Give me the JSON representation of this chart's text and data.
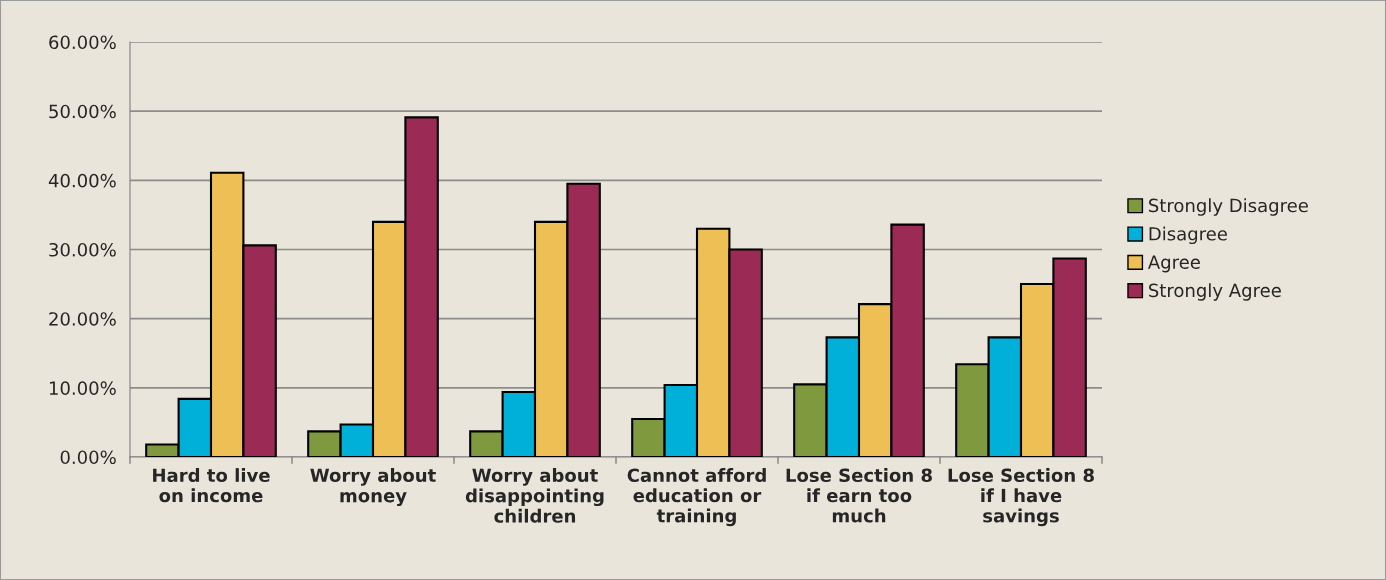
{
  "chart_data": {
    "type": "bar",
    "categories": [
      "Hard to live on income",
      "Worry about money",
      "Worry about disappointing children",
      "Cannot afford education or training",
      "Lose Section 8 if earn too much",
      "Lose Section 8 if I have savings"
    ],
    "series": [
      {
        "name": "Strongly Disagree",
        "color": "#7f9a3e",
        "values": [
          1.8,
          3.7,
          3.7,
          5.5,
          10.5,
          13.4
        ]
      },
      {
        "name": "Disagree",
        "color": "#00b0d8",
        "values": [
          8.4,
          4.7,
          9.4,
          10.4,
          17.3,
          17.3
        ]
      },
      {
        "name": "Agree",
        "color": "#eebf55",
        "values": [
          41.1,
          34.0,
          34.0,
          33.0,
          22.1,
          25.0
        ]
      },
      {
        "name": "Strongly Agree",
        "color": "#9b2b55",
        "values": [
          30.6,
          49.1,
          39.5,
          30.0,
          33.6,
          28.7
        ]
      }
    ],
    "ylim": [
      0,
      60
    ],
    "yticks": [
      {
        "value": 0,
        "label": "0.00%"
      },
      {
        "value": 10,
        "label": "10.00%"
      },
      {
        "value": 20,
        "label": "20.00%"
      },
      {
        "value": 30,
        "label": "30.00%"
      },
      {
        "value": 40,
        "label": "40.00%"
      },
      {
        "value": 50,
        "label": "50.00%"
      },
      {
        "value": 60,
        "label": "60.00%"
      }
    ],
    "grid": "y",
    "legend": "right"
  }
}
